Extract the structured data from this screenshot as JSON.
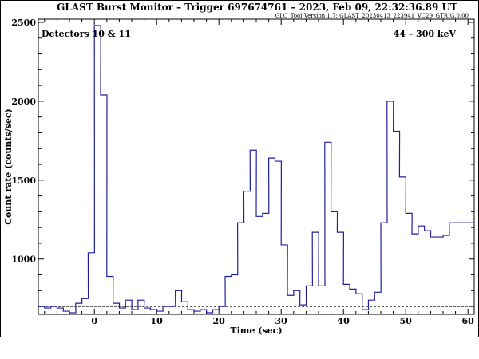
{
  "title": "GLAST Burst Monitor  –  Trigger 697674761  –  2023, Feb 09, 22:32:36.89 UT",
  "subtitle": "GLC_Tool Version 1.7; GLAST_20230413_223941_VC29_GTRIG.0.00",
  "annotation_left": "Detectors 10 & 11",
  "annotation_right": "44 – 300 keV",
  "chart_data": {
    "type": "line",
    "style": "step",
    "xlabel": "Time (sec)",
    "ylabel": "Count rate (counts/sec)",
    "xlim": [
      -9,
      61
    ],
    "ylim": [
      650,
      2520
    ],
    "x_ticks": [
      0,
      10,
      20,
      30,
      40,
      50,
      60
    ],
    "y_ticks": [
      1000,
      1500,
      2000,
      2500
    ],
    "grid": false,
    "background_level": 700,
    "colors": {
      "series": "#1f1fa0",
      "background": "#000000"
    },
    "series": [
      {
        "bin_width": 1.024,
        "x": [
          -9.0,
          -8.0,
          -7.0,
          -6.0,
          -5.0,
          -4.0,
          -3.0,
          -2.0,
          -1.0,
          0.0,
          1.0,
          2.0,
          3.0,
          4.0,
          5.0,
          6.0,
          7.0,
          8.0,
          9.0,
          10.0,
          11.0,
          12.0,
          13.0,
          14.0,
          15.0,
          16.0,
          17.0,
          18.0,
          19.0,
          20.0,
          21.0,
          22.0,
          23.0,
          24.0,
          25.0,
          26.0,
          27.0,
          28.0,
          29.0,
          30.0,
          31.0,
          32.0,
          33.0,
          34.0,
          35.0,
          36.0,
          37.0,
          38.0,
          39.0,
          40.0,
          41.0,
          42.0,
          43.0,
          44.0,
          45.0,
          46.0,
          47.0,
          48.0,
          49.0,
          50.0,
          51.0,
          52.0,
          53.0,
          54.0,
          55.0,
          56.0,
          57.0,
          58.0,
          59.0,
          60.0
        ],
        "values": [
          700,
          690,
          700,
          690,
          670,
          660,
          720,
          750,
          1040,
          2480,
          2040,
          890,
          720,
          690,
          740,
          680,
          740,
          690,
          680,
          670,
          700,
          700,
          800,
          730,
          680,
          670,
          680,
          660,
          680,
          700,
          890,
          900,
          1230,
          1430,
          1690,
          1270,
          1290,
          1640,
          1620,
          1090,
          770,
          800,
          710,
          830,
          1170,
          830,
          1740,
          1300,
          1170,
          840,
          810,
          780,
          680,
          740,
          790,
          1230,
          2000,
          1810,
          1520,
          1290,
          1160,
          1210,
          1180,
          1140,
          1140,
          1150,
          1230,
          1230,
          1230,
          1230
        ]
      }
    ]
  }
}
